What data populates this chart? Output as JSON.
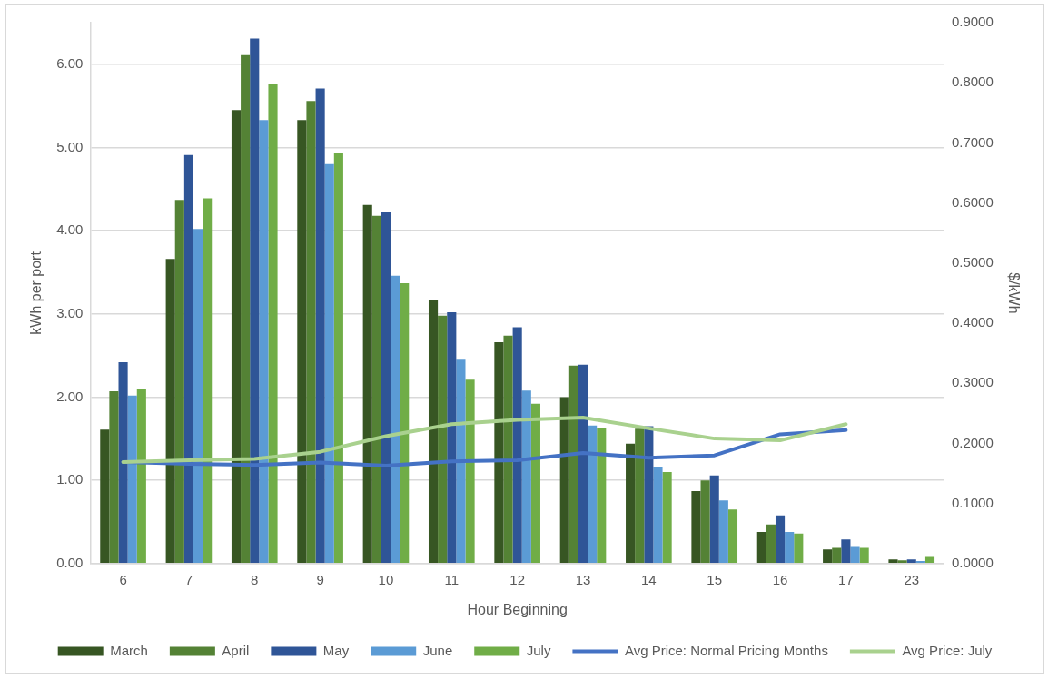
{
  "chart_data": {
    "type": "bar",
    "xlabel": "Hour Beginning",
    "ylabel": "kWh per port",
    "y2label": "$/kWh",
    "categories": [
      "6",
      "7",
      "8",
      "9",
      "10",
      "11",
      "12",
      "13",
      "14",
      "15",
      "16",
      "17",
      "23"
    ],
    "series": [
      {
        "name": "March",
        "color": "#375623",
        "values": [
          1.61,
          3.66,
          5.45,
          5.33,
          4.31,
          3.17,
          2.66,
          2.0,
          1.44,
          0.87,
          0.38,
          0.17,
          0.05
        ]
      },
      {
        "name": "April",
        "color": "#548235",
        "values": [
          2.07,
          4.37,
          6.11,
          5.56,
          4.18,
          2.98,
          2.74,
          2.38,
          1.62,
          1.0,
          0.47,
          0.19,
          0.04
        ]
      },
      {
        "name": "May",
        "color": "#2f5597",
        "values": [
          2.42,
          4.91,
          6.31,
          5.71,
          4.22,
          3.02,
          2.84,
          2.39,
          1.65,
          1.06,
          0.58,
          0.29,
          0.05
        ]
      },
      {
        "name": "June",
        "color": "#5b9bd5",
        "values": [
          2.02,
          4.02,
          5.33,
          4.8,
          3.46,
          2.45,
          2.08,
          1.66,
          1.16,
          0.76,
          0.38,
          0.2,
          0.03
        ]
      },
      {
        "name": "July",
        "color": "#70ad47",
        "values": [
          2.1,
          4.39,
          5.77,
          4.93,
          3.37,
          2.21,
          1.92,
          1.63,
          1.1,
          0.65,
          0.36,
          0.19,
          0.08
        ]
      },
      {
        "name": "Avg Price: Normal Pricing Months",
        "type": "line",
        "axis": "y2",
        "color": "#4472c4",
        "values": [
          0.169,
          0.166,
          0.164,
          0.168,
          0.163,
          0.17,
          0.172,
          0.184,
          0.176,
          0.18,
          0.215,
          0.222,
          null
        ]
      },
      {
        "name": "Avg Price: July",
        "type": "line",
        "axis": "y2",
        "color": "#a9d18e",
        "values": [
          0.169,
          0.172,
          0.174,
          0.186,
          0.212,
          0.232,
          0.239,
          0.243,
          0.225,
          0.208,
          0.205,
          0.232,
          null
        ]
      }
    ],
    "ylim": [
      0,
      6.5
    ],
    "yticks": [
      {
        "value": 0,
        "label": "0.00"
      },
      {
        "value": 1,
        "label": "1.00"
      },
      {
        "value": 2,
        "label": "2.00"
      },
      {
        "value": 3,
        "label": "3.00"
      },
      {
        "value": 4,
        "label": "4.00"
      },
      {
        "value": 5,
        "label": "5.00"
      },
      {
        "value": 6,
        "label": "6.00"
      }
    ],
    "y2lim": [
      0,
      0.9
    ],
    "y2ticks": [
      {
        "value": 0,
        "label": "0.0000"
      },
      {
        "value": 0.1,
        "label": "0.1000"
      },
      {
        "value": 0.2,
        "label": "0.2000"
      },
      {
        "value": 0.3,
        "label": "0.3000"
      },
      {
        "value": 0.4,
        "label": "0.4000"
      },
      {
        "value": 0.5,
        "label": "0.5000"
      },
      {
        "value": 0.6,
        "label": "0.6000"
      },
      {
        "value": 0.7,
        "label": "0.7000"
      },
      {
        "value": 0.8,
        "label": "0.8000"
      },
      {
        "value": 0.9,
        "label": "0.9000"
      }
    ],
    "grid": "y",
    "legend": "bottom",
    "marker": "none",
    "line_style": "solid"
  }
}
